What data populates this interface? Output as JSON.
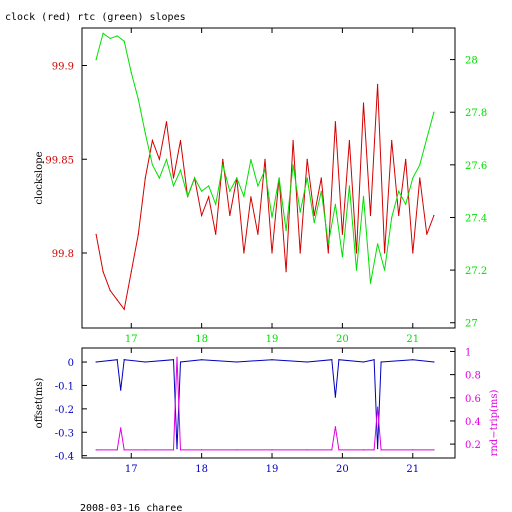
{
  "title": "clock (red) rtc (green) slopes",
  "footer": "2008-03-16 charee",
  "colors": {
    "red": "#d40000",
    "green": "#00e000",
    "blue": "#0000c0",
    "magenta": "#e000e0",
    "axis": "#000000"
  },
  "chart_data": [
    {
      "type": "line",
      "x_ticks": [
        17,
        18,
        19,
        20,
        21
      ],
      "xlim": [
        16.3,
        21.6
      ],
      "grid": false,
      "left_axis": {
        "label": "clockslope",
        "ticks": [
          "99.8",
          "99.85",
          "99.9"
        ],
        "ylim": [
          99.76,
          99.92
        ]
      },
      "right_axis": {
        "label": "",
        "ticks": [
          "27",
          "27.2",
          "27.4",
          "27.6",
          "27.8",
          "28"
        ],
        "ylim": [
          26.98,
          28.12
        ]
      },
      "series": [
        {
          "name": "clock",
          "axis": "left",
          "color": "#d40000",
          "x": [
            16.5,
            16.6,
            16.7,
            16.8,
            16.9,
            17.0,
            17.1,
            17.2,
            17.3,
            17.4,
            17.5,
            17.6,
            17.7,
            17.8,
            17.9,
            18.0,
            18.1,
            18.2,
            18.3,
            18.4,
            18.5,
            18.6,
            18.7,
            18.8,
            18.9,
            19.0,
            19.1,
            19.2,
            19.3,
            19.4,
            19.5,
            19.6,
            19.7,
            19.8,
            19.9,
            20.0,
            20.1,
            20.2,
            20.3,
            20.4,
            20.5,
            20.6,
            20.7,
            20.8,
            20.9,
            21.0,
            21.1,
            21.2,
            21.3
          ],
          "values": [
            99.81,
            99.79,
            99.78,
            99.775,
            99.77,
            99.79,
            99.81,
            99.84,
            99.86,
            99.85,
            99.87,
            99.84,
            99.86,
            99.83,
            99.84,
            99.82,
            99.83,
            99.81,
            99.85,
            99.82,
            99.84,
            99.8,
            99.83,
            99.81,
            99.85,
            99.8,
            99.84,
            99.79,
            99.86,
            99.8,
            99.85,
            99.82,
            99.84,
            99.8,
            99.87,
            99.81,
            99.86,
            99.8,
            99.88,
            99.82,
            99.89,
            99.8,
            99.86,
            99.82,
            99.85,
            99.8,
            99.84,
            99.81,
            99.82
          ]
        },
        {
          "name": "rtc",
          "axis": "right",
          "color": "#00e000",
          "x": [
            16.5,
            16.6,
            16.7,
            16.8,
            16.9,
            17.0,
            17.1,
            17.2,
            17.3,
            17.4,
            17.5,
            17.6,
            17.7,
            17.8,
            17.9,
            18.0,
            18.1,
            18.2,
            18.3,
            18.4,
            18.5,
            18.6,
            18.7,
            18.8,
            18.9,
            19.0,
            19.1,
            19.2,
            19.3,
            19.4,
            19.5,
            19.6,
            19.7,
            19.8,
            19.9,
            20.0,
            20.1,
            20.2,
            20.3,
            20.4,
            20.5,
            20.6,
            20.7,
            20.8,
            20.9,
            21.0,
            21.1,
            21.2,
            21.3
          ],
          "values": [
            28.0,
            28.1,
            28.08,
            28.09,
            28.07,
            27.95,
            27.85,
            27.72,
            27.6,
            27.55,
            27.62,
            27.52,
            27.58,
            27.48,
            27.55,
            27.5,
            27.52,
            27.45,
            27.6,
            27.5,
            27.55,
            27.48,
            27.62,
            27.52,
            27.58,
            27.4,
            27.55,
            27.35,
            27.6,
            27.42,
            27.55,
            27.38,
            27.5,
            27.3,
            27.45,
            27.25,
            27.52,
            27.2,
            27.48,
            27.15,
            27.3,
            27.2,
            27.4,
            27.5,
            27.45,
            27.55,
            27.6,
            27.7,
            27.8
          ]
        }
      ]
    },
    {
      "type": "line",
      "x_ticks": [
        17,
        18,
        19,
        20,
        21
      ],
      "xlim": [
        16.3,
        21.6
      ],
      "grid": false,
      "left_axis": {
        "label": "offset(ms)",
        "ticks": [
          "-0.4",
          "-0.3",
          "-0.2",
          "-0.1",
          "0"
        ],
        "ylim": [
          -0.41,
          0.06
        ]
      },
      "right_axis": {
        "label": "rnd−trip(ms)",
        "ticks": [
          "0.2",
          "0.4",
          "0.6",
          "0.8",
          "1"
        ],
        "ylim": [
          0.08,
          1.03
        ]
      },
      "series": [
        {
          "name": "offset",
          "axis": "left",
          "color": "#0000c0",
          "x": [
            16.5,
            16.8,
            16.85,
            16.9,
            17.2,
            17.6,
            17.65,
            17.7,
            18.0,
            18.5,
            19.0,
            19.5,
            19.85,
            19.9,
            19.95,
            20.3,
            20.45,
            20.5,
            20.55,
            21.0,
            21.3
          ],
          "values": [
            0.0,
            0.01,
            -0.12,
            0.01,
            0.0,
            0.01,
            -0.37,
            0.0,
            0.01,
            0.0,
            0.01,
            0.0,
            0.01,
            -0.15,
            0.01,
            0.0,
            0.01,
            -0.37,
            0.0,
            0.01,
            0.0
          ]
        },
        {
          "name": "rnd-trip",
          "axis": "right",
          "color": "#e000e0",
          "x": [
            16.5,
            16.8,
            16.85,
            16.9,
            17.2,
            17.6,
            17.65,
            17.7,
            18.0,
            18.5,
            19.0,
            19.5,
            19.85,
            19.9,
            19.95,
            20.3,
            20.45,
            20.5,
            20.55,
            21.0,
            21.3
          ],
          "values": [
            0.15,
            0.15,
            0.34,
            0.15,
            0.15,
            0.15,
            0.95,
            0.15,
            0.15,
            0.15,
            0.15,
            0.15,
            0.15,
            0.35,
            0.15,
            0.15,
            0.15,
            0.52,
            0.15,
            0.15,
            0.15
          ]
        }
      ]
    }
  ]
}
